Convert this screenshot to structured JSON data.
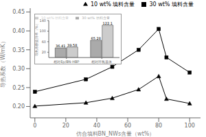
{
  "chart_data": [
    {
      "type": "line",
      "xlabel": "仿合填料BN_NWs含量（wt%）",
      "ylabel": "导热系数（W/mK）",
      "x": [
        0,
        33,
        50,
        67,
        80,
        85,
        100
      ],
      "series": [
        {
          "name": "30 wt% 填料含量",
          "color": "#000000",
          "marker": "square",
          "values": [
            0.239,
            0.272,
            0.305,
            0.35,
            0.405,
            0.33,
            0.29
          ]
        },
        {
          "name": "10 wt% 填料含量",
          "color": "#000000",
          "marker": "triangle",
          "values": [
            0.201,
            0.21,
            0.222,
            0.245,
            0.28,
            0.22,
            0.208
          ]
        }
      ],
      "xlim": [
        -3,
        107
      ],
      "ylim": [
        0.17,
        0.46
      ],
      "xticks": [
        0,
        20,
        40,
        60,
        80,
        100
      ],
      "yticks": [
        {
          "value": 0.2,
          "label": "0.20"
        },
        {
          "value": 0.25,
          "label": "0.25"
        },
        {
          "value": 0.3,
          "label": "0.30"
        },
        {
          "value": 0.35,
          "label": "0.35"
        },
        {
          "value": 0.4,
          "label": "0.40"
        },
        {
          "value": 0.45,
          "label": "0.45"
        }
      ],
      "legend": "upper right",
      "grid": false
    },
    {
      "type": "bar",
      "ylabel": "导热系数提升率（%）",
      "categories": [
        "相对Ep/BN-HBP",
        "相对环氧基体"
      ],
      "series": [
        {
          "name": "30 wt% 填料含量",
          "color": "#aaaaaa",
          "values": [
            36.41,
            65.28
          ]
        },
        {
          "name": "10 wt% 填料含量",
          "color": "#cccccc",
          "values": [
            39.58,
            122.1
          ]
        }
      ],
      "ylim": [
        0,
        140
      ],
      "yticks": [
        20,
        60,
        100,
        140
      ],
      "legend": "upper left",
      "data_labels": true,
      "grid": false
    }
  ]
}
